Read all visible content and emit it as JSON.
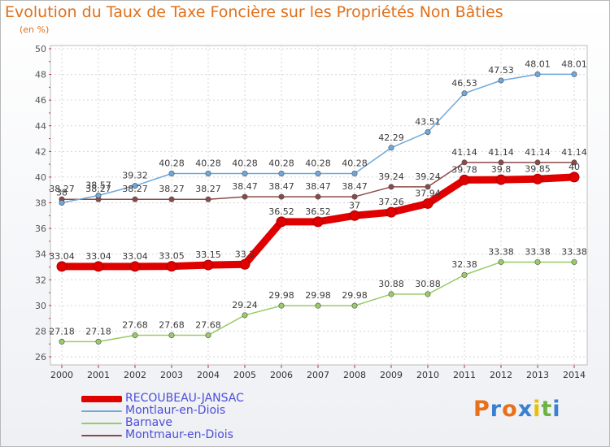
{
  "chart_data": {
    "type": "line",
    "title": "Evolution du Taux de Taxe Foncière sur les Propriétés Non Bâties",
    "ylabel": "(en %)",
    "xlabel": "",
    "categories": [
      "2000",
      "2001",
      "2002",
      "2003",
      "2004",
      "2005",
      "2006",
      "2007",
      "2008",
      "2009",
      "2010",
      "2011",
      "2012",
      "2013",
      "2014"
    ],
    "ylim": [
      26,
      50
    ],
    "yticks": [
      "26",
      "28",
      "30",
      "32",
      "34",
      "36",
      "38",
      "40",
      "42",
      "44",
      "46",
      "48",
      "50"
    ],
    "grid": true,
    "legend_position": "bottom-left",
    "series": [
      {
        "name": "RECOUBEAU-JANSAC",
        "color": "#e00000",
        "values": [
          33.04,
          33.04,
          33.04,
          33.05,
          33.15,
          33.2,
          36.52,
          36.52,
          37,
          37.26,
          37.94,
          39.78,
          39.8,
          39.85,
          40
        ],
        "labels": [
          "33.04",
          "33.04",
          "33.04",
          "33.05",
          "33.15",
          "33.2",
          "36.52",
          "36.52",
          "37",
          "37.26",
          "37.94",
          "39.78",
          "39.8",
          "39.85",
          "40"
        ]
      },
      {
        "name": "Montlaur-en-Diois",
        "color": "#6fa8dc",
        "values": [
          38,
          38.57,
          39.32,
          40.28,
          40.28,
          40.28,
          40.28,
          40.28,
          40.28,
          42.29,
          43.51,
          46.53,
          47.53,
          48.01,
          48.01
        ],
        "labels": [
          "38",
          "38.57",
          "39.32",
          "40.28",
          "40.28",
          "40.28",
          "40.28",
          "40.28",
          "40.28",
          "42.29",
          "43.51",
          "46.53",
          "47.53",
          "48.01",
          "48.01"
        ]
      },
      {
        "name": "Barnave",
        "color": "#99cc66",
        "values": [
          27.18,
          27.18,
          27.68,
          27.68,
          27.68,
          29.24,
          29.98,
          29.98,
          29.98,
          30.88,
          30.88,
          32.38,
          33.38,
          33.38,
          33.38
        ],
        "labels": [
          "27.18",
          "27.18",
          "27.68",
          "27.68",
          "27.68",
          "29.24",
          "29.98",
          "29.98",
          "29.98",
          "30.88",
          "30.88",
          "32.38",
          "33.38",
          "33.38",
          "33.38"
        ]
      },
      {
        "name": "Montmaur-en-Diois",
        "color": "#8b4a4a",
        "values": [
          38.27,
          38.27,
          38.27,
          38.27,
          38.27,
          38.47,
          38.47,
          38.47,
          38.47,
          39.24,
          39.24,
          41.14,
          41.14,
          41.14,
          41.14
        ],
        "labels": [
          "38.27",
          "38.27",
          "38.27",
          "38.27",
          "38.27",
          "38.47",
          "38.47",
          "38.47",
          "38.47",
          "39.24",
          "39.24",
          "41.14",
          "41.14",
          "41.14",
          "41.14"
        ]
      }
    ]
  },
  "logo": {
    "letters": [
      "P",
      "r",
      "o",
      "x",
      "i",
      "t",
      "i"
    ],
    "colors": [
      "#e8701a",
      "#3a7fd0",
      "#e8701a",
      "#3a7fd0",
      "#e8c000",
      "#6db33f",
      "#3a7fd0"
    ]
  }
}
